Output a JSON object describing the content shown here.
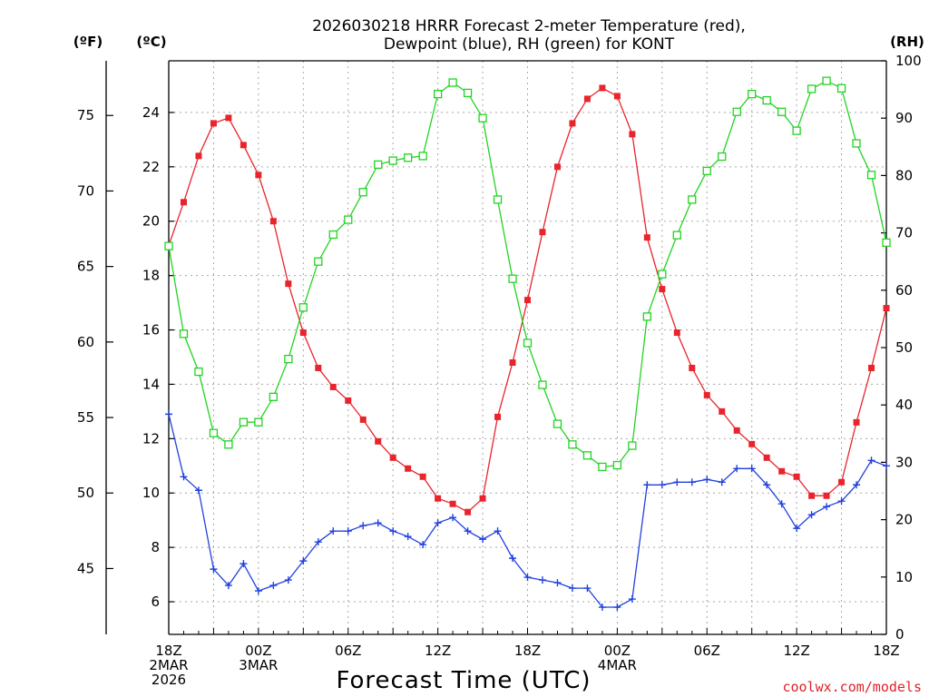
{
  "page": {
    "title_line1": "2026030218 HRRR Forecast 2-meter Temperature (red),",
    "title_line2": "Dewpoint (blue), RH (green) for KONT",
    "unit_f": "(ºF)",
    "unit_c": "(ºC)",
    "unit_rh": "(RH)",
    "credit": "coolwx.com/models"
  },
  "chart_data": {
    "type": "line",
    "title": "2026030218 HRRR Forecast 2-meter Temperature (red), Dewpoint (blue), RH (green) for KONT",
    "xlabel": "Forecast Time (UTC)",
    "ylabel_left_f": "(ºF)",
    "ylabel_left_c": "(ºC)",
    "ylabel_right": "(RH)",
    "x_hours": [
      0,
      1,
      2,
      3,
      4,
      5,
      6,
      7,
      8,
      9,
      10,
      11,
      12,
      13,
      14,
      15,
      16,
      17,
      18,
      19,
      20,
      21,
      22,
      23,
      24,
      25,
      26,
      27,
      28,
      29,
      30,
      31,
      32,
      33,
      34,
      35,
      36,
      37,
      38,
      39,
      40,
      41,
      42,
      43,
      44,
      45,
      46,
      47,
      48
    ],
    "x_ticks": [
      {
        "hour": 0,
        "lines": [
          "18Z",
          "2MAR",
          "2026"
        ]
      },
      {
        "hour": 6,
        "lines": [
          "00Z",
          "3MAR"
        ]
      },
      {
        "hour": 12,
        "lines": [
          "06Z"
        ]
      },
      {
        "hour": 18,
        "lines": [
          "12Z"
        ]
      },
      {
        "hour": 24,
        "lines": [
          "18Z"
        ]
      },
      {
        "hour": 30,
        "lines": [
          "00Z",
          "4MAR"
        ]
      },
      {
        "hour": 36,
        "lines": [
          "06Z"
        ]
      },
      {
        "hour": 42,
        "lines": [
          "12Z"
        ]
      },
      {
        "hour": 48,
        "lines": [
          "18Z"
        ]
      }
    ],
    "xlim": [
      0,
      48
    ],
    "c_axis": {
      "ticks": [
        "6",
        "8",
        "10",
        "12",
        "14",
        "16",
        "18",
        "20",
        "22",
        "24"
      ],
      "ylim": [
        4.8,
        25.9
      ]
    },
    "f_axis": {
      "ticks": [
        "45",
        "50",
        "55",
        "60",
        "65",
        "70",
        "75"
      ]
    },
    "rh_axis": {
      "ticks": [
        "0",
        "10",
        "20",
        "30",
        "40",
        "50",
        "60",
        "70",
        "80",
        "90",
        "100"
      ],
      "ylim": [
        0,
        100
      ]
    },
    "series": [
      {
        "name": "Temperature",
        "units": "C",
        "axis": "c",
        "color": "#e8242c",
        "marker": "filled-square",
        "values": [
          19.1,
          20.7,
          22.4,
          23.6,
          23.8,
          22.8,
          21.7,
          20.0,
          17.7,
          15.9,
          14.6,
          13.9,
          13.4,
          12.7,
          11.9,
          11.3,
          10.9,
          10.6,
          9.8,
          9.6,
          9.3,
          9.8,
          12.8,
          14.8,
          17.1,
          19.6,
          22.0,
          23.6,
          24.5,
          24.9,
          24.6,
          23.2,
          19.4,
          17.5,
          15.9,
          14.6,
          13.6,
          13.0,
          12.3,
          11.8,
          11.3,
          10.8,
          10.6,
          9.9,
          9.9,
          10.4,
          12.6,
          14.6,
          16.8
        ]
      },
      {
        "name": "Dewpoint",
        "units": "C",
        "axis": "c",
        "color": "#2040e0",
        "marker": "plus",
        "values": [
          12.9,
          10.6,
          10.1,
          7.2,
          6.6,
          7.4,
          6.4,
          6.6,
          6.8,
          7.5,
          8.2,
          8.6,
          8.6,
          8.8,
          8.9,
          8.6,
          8.4,
          8.1,
          8.9,
          9.1,
          8.6,
          8.3,
          8.6,
          7.6,
          6.9,
          6.8,
          6.7,
          6.5,
          6.5,
          5.8,
          5.8,
          6.1,
          10.3,
          10.3,
          10.4,
          10.4,
          10.5,
          10.4,
          10.9,
          10.9,
          10.3,
          9.6,
          8.7,
          9.2,
          9.5,
          9.7,
          10.3,
          11.2,
          11.0
        ]
      },
      {
        "name": "Relative Humidity",
        "units": "%",
        "axis": "rh",
        "color": "#22d422",
        "marker": "open-square",
        "values": [
          67.7,
          52.4,
          45.8,
          35.1,
          33.1,
          37.0,
          37.0,
          41.4,
          48.0,
          57.0,
          65.0,
          69.7,
          72.3,
          77.1,
          81.9,
          82.6,
          83.1,
          83.4,
          94.2,
          96.2,
          94.4,
          90.0,
          75.8,
          62.0,
          50.8,
          43.5,
          36.7,
          33.1,
          31.2,
          29.2,
          29.5,
          32.9,
          55.4,
          62.8,
          69.6,
          75.8,
          80.8,
          83.3,
          91.1,
          94.2,
          93.1,
          91.1,
          87.8,
          95.1,
          96.5,
          95.2,
          85.6,
          80.1,
          68.3
        ]
      }
    ],
    "grid": true
  }
}
